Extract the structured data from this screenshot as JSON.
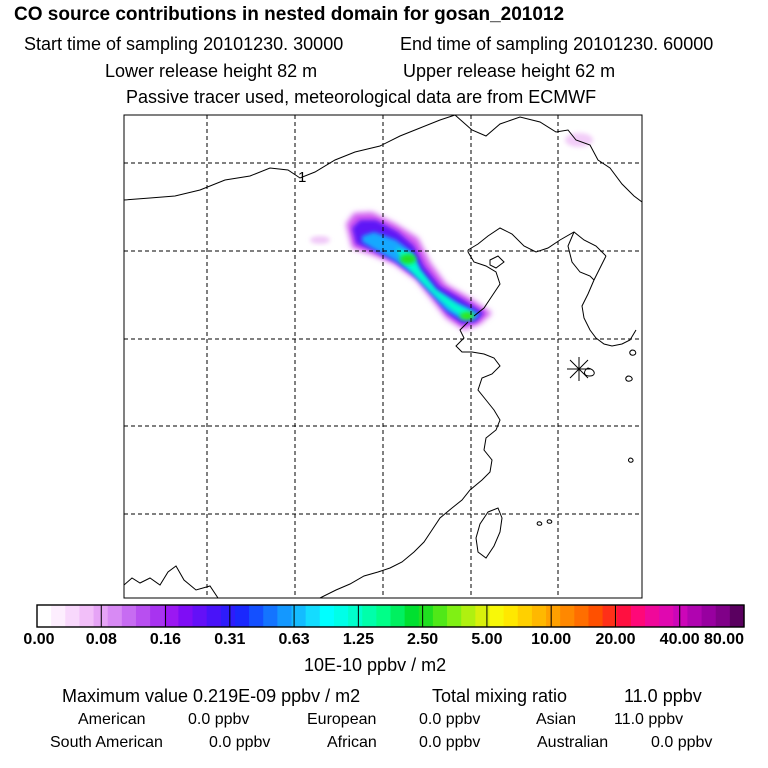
{
  "header": {
    "title": "CO  source contributions in nested domain for gosan_201012",
    "start_time": "Start time of sampling 20101230. 30000",
    "end_time": "End time of sampling 20101230. 60000",
    "lower_release": "Lower release height   82 m",
    "upper_release": "Upper release height   62 m",
    "tracer_note": "Passive tracer used, meteorological data are from ECMWF"
  },
  "map": {
    "marker_label": "1",
    "receptor_symbol": "asterisk"
  },
  "colorbar": {
    "unit": "10E-10 ppbv / m2",
    "tick_labels": [
      "0.00",
      "0.08",
      "0.16",
      "0.31",
      "0.63",
      "1.25",
      "2.50",
      "5.00",
      "10.00",
      "20.00",
      "40.00",
      "80.00"
    ],
    "colors": [
      "#ffffff",
      "#fdeefe",
      "#f8d8fc",
      "#f2bff9",
      "#e6a4f6",
      "#d88af4",
      "#c76cf2",
      "#b84ff0",
      "#a833f0",
      "#9b18f2",
      "#7f0df5",
      "#6410f7",
      "#4913f9",
      "#2e1cfb",
      "#1a28fd",
      "#1450ff",
      "#1474ff",
      "#1498ff",
      "#14bcff",
      "#14dcff",
      "#00ffff",
      "#00ffe8",
      "#00ffcc",
      "#00ffaa",
      "#00ff88",
      "#00f060",
      "#00e030",
      "#20e020",
      "#50e818",
      "#80f014",
      "#b0f010",
      "#d8f00c",
      "#f8f808",
      "#ffe800",
      "#ffd000",
      "#ffb800",
      "#ffa000",
      "#ff8800",
      "#ff6e00",
      "#ff5000",
      "#ff3018",
      "#ff1040",
      "#ff0878",
      "#f0089a",
      "#e008b0",
      "#cc06b8",
      "#b004b0",
      "#9800a0",
      "#800088",
      "#5a0060"
    ]
  },
  "stats": {
    "maximum_label": "Maximum value  0.219E-09 ppbv / m2",
    "total_label": "Total mixing ratio",
    "total_value": "11.0 ppbv",
    "american_label": "American",
    "american_value": "0.0 ppbv",
    "european_label": "European",
    "european_value": "0.0 ppbv",
    "asian_label": "Asian",
    "asian_value": "11.0 ppbv",
    "south_american_label": "South American",
    "south_american_value": "0.0 ppbv",
    "african_label": "African",
    "african_value": "0.0 ppbv",
    "australian_label": "Australian",
    "australian_value": "0.0 ppbv"
  }
}
